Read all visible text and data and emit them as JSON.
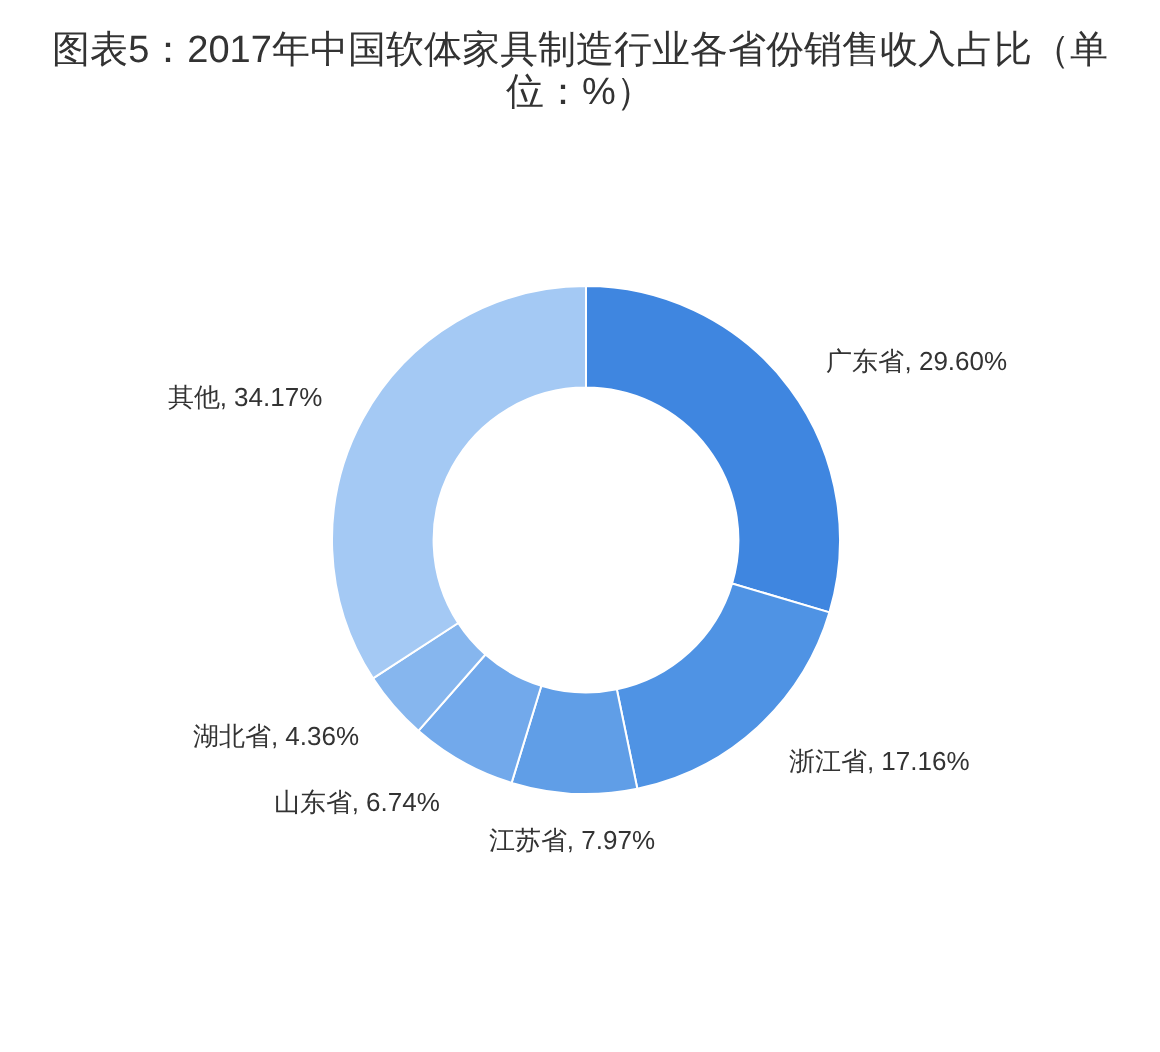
{
  "chart_data": {
    "type": "donut",
    "title": "图表5：2017年中国软体家具制造行业各省份销售收入占比（单位：%）",
    "categories": [
      "广东省",
      "浙江省",
      "江苏省",
      "山东省",
      "湖北省",
      "其他"
    ],
    "values": [
      29.6,
      17.16,
      7.97,
      6.74,
      4.36,
      34.17
    ],
    "colors": [
      "#3f86e0",
      "#4f93e4",
      "#609ee7",
      "#72a9eb",
      "#86b6ee",
      "#a4c9f4"
    ],
    "value_labels": [
      "29.60%",
      "17.16%",
      "7.97%",
      "6.74%",
      "4.36%",
      "34.17%"
    ]
  }
}
